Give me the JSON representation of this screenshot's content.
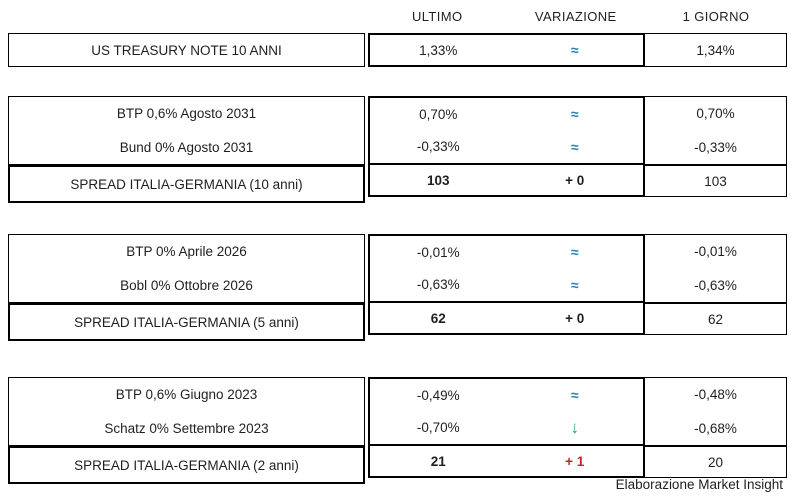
{
  "columns": {
    "ultimo": "ULTIMO",
    "variazione": "VARIAZIONE",
    "giorno": "1 GIORNO"
  },
  "treasury": {
    "label": "US TREASURY NOTE 10 ANNI",
    "ultimo": "1,33%",
    "variazione": "≈",
    "giorno": "1,34%"
  },
  "sections": [
    {
      "rows": [
        {
          "label": "BTP 0,6% Agosto 2031",
          "ultimo": "0,70%",
          "variazione": "≈",
          "giorno": "0,70%"
        },
        {
          "label": "Bund 0% Agosto 2031",
          "ultimo": "-0,33%",
          "variazione": "≈",
          "giorno": "-0,33%"
        }
      ],
      "spread": {
        "label": "SPREAD ITALIA-GERMANIA (10 anni)",
        "ultimo": "103",
        "variazione": "+ 0",
        "giorno": "103"
      }
    },
    {
      "rows": [
        {
          "label": "BTP 0% Aprile 2026",
          "ultimo": "-0,01%",
          "variazione": "≈",
          "giorno": "-0,01%"
        },
        {
          "label": "Bobl 0% Ottobre 2026",
          "ultimo": "-0,63%",
          "variazione": "≈",
          "giorno": "-0,63%"
        }
      ],
      "spread": {
        "label": "SPREAD ITALIA-GERMANIA (5 anni)",
        "ultimo": "62",
        "variazione": "+ 0",
        "giorno": "62"
      }
    },
    {
      "rows": [
        {
          "label": "BTP 0,6% Giugno 2023",
          "ultimo": "-0,49%",
          "variazione": "≈",
          "giorno": "-0,48%"
        },
        {
          "label": "Schatz 0% Settembre 2023",
          "ultimo": "-0,70%",
          "variazione": "↓",
          "giorno": "-0,68%"
        }
      ],
      "spread": {
        "label": "SPREAD ITALIA-GERMANIA (2 anni)",
        "ultimo": "21",
        "variazione": "+ 1",
        "giorno": "20"
      }
    }
  ],
  "footer": {
    "credit": "Elaborazione Market Insight"
  },
  "colors": {
    "approx_symbol": "#2581ad",
    "down_arrow": "#27a05d",
    "spread_increase": "#bf2626",
    "border": "#000000",
    "text": "#1f1f1f",
    "background": "#ffffff"
  }
}
